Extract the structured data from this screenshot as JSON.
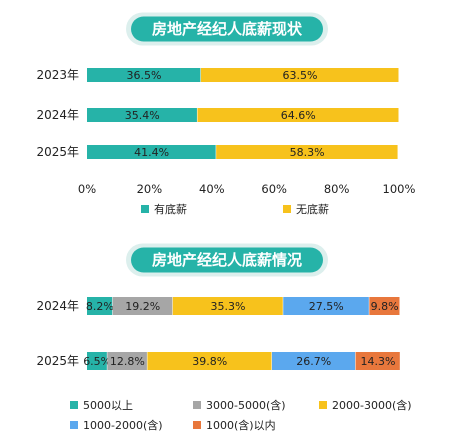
{
  "chart_data": [
    {
      "type": "bar",
      "orientation": "horizontal",
      "stacked": true,
      "title": "房地产经纪人底薪现状",
      "categories": [
        "2023年",
        "2024年",
        "2025年"
      ],
      "series": [
        {
          "name": "有底薪",
          "color": "#26b3a8",
          "values": [
            36.5,
            35.4,
            41.4
          ]
        },
        {
          "name": "无底薪",
          "color": "#f7c21c",
          "values": [
            63.5,
            64.6,
            58.3
          ]
        }
      ],
      "x_ticks": [
        "0%",
        "20%",
        "40%",
        "60%",
        "80%",
        "100%"
      ],
      "xlim": [
        0,
        100
      ],
      "grid": false,
      "legend_position": "bottom"
    },
    {
      "type": "bar",
      "orientation": "horizontal",
      "stacked": true,
      "title": "房地产经纪人底薪情况",
      "categories": [
        "2024年",
        "2025年"
      ],
      "series": [
        {
          "name": "5000以上",
          "color": "#26b3a8",
          "values": [
            8.2,
            6.5
          ]
        },
        {
          "name": "3000-5000(含)",
          "color": "#a6a6a6",
          "values": [
            19.2,
            12.8
          ]
        },
        {
          "name": "2000-3000(含)",
          "color": "#f7c21c",
          "values": [
            35.3,
            39.8
          ]
        },
        {
          "name": "1000-2000(含)",
          "color": "#5ba8ee",
          "values": [
            27.5,
            26.7
          ]
        },
        {
          "name": "1000(含)以内",
          "color": "#e8773c",
          "values": [
            9.8,
            14.3
          ]
        }
      ],
      "xlim": [
        0,
        100
      ],
      "grid": false,
      "legend_position": "bottom"
    }
  ],
  "style": {
    "title_pill_color": "#26b3a8",
    "title_pill_shadow": "#dcefed",
    "text_color": "#222222"
  }
}
